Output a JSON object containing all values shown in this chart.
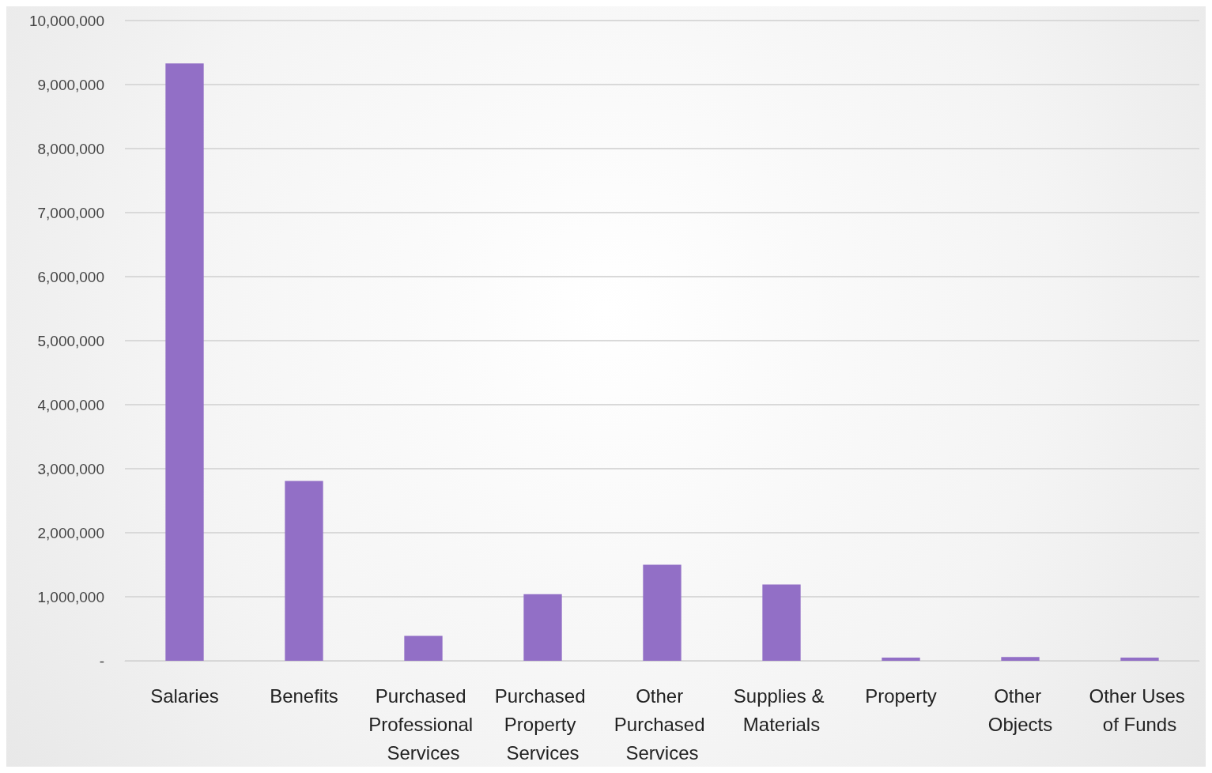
{
  "chart_data": {
    "type": "bar",
    "categories": [
      "Salaries",
      "Benefits",
      "Purchased Professional Services",
      "Purchased Property Services",
      "Other Purchased Services",
      "Supplies & Materials",
      "Property",
      "Other Objects",
      "Other Uses of Funds"
    ],
    "values": [
      9330000,
      2810000,
      390000,
      1040000,
      1500000,
      1190000,
      50000,
      60000,
      50000
    ],
    "color": "#926fc6",
    "ylim": [
      0,
      10000000
    ],
    "yticks": [
      {
        "value": 0,
        "label": "-"
      },
      {
        "value": 1000000,
        "label": "1,000,000"
      },
      {
        "value": 2000000,
        "label": "2,000,000"
      },
      {
        "value": 3000000,
        "label": "3,000,000"
      },
      {
        "value": 4000000,
        "label": "4,000,000"
      },
      {
        "value": 5000000,
        "label": "5,000,000"
      },
      {
        "value": 6000000,
        "label": "6,000,000"
      },
      {
        "value": 7000000,
        "label": "7,000,000"
      },
      {
        "value": 8000000,
        "label": "8,000,000"
      },
      {
        "value": 9000000,
        "label": "9,000,000"
      },
      {
        "value": 10000000,
        "label": "10,000,000"
      }
    ],
    "grid": "y"
  }
}
